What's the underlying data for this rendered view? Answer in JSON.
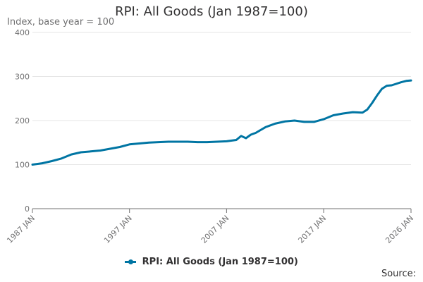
{
  "title": "RPI: All Goods (Jan 1987=100)",
  "source_label": "Source:",
  "colors": {
    "series": "#0075A3",
    "grid": "#e6e6e6",
    "axis": "#707071"
  },
  "chart_data": {
    "type": "line",
    "title": "RPI: All Goods (Jan 1987=100)",
    "ylabel": "Index, base year = 100",
    "xlabel": "",
    "ylim": [
      0,
      400
    ],
    "yticks": [
      0,
      100,
      200,
      300,
      400
    ],
    "xlim": [
      "1987-01",
      "2026-01"
    ],
    "xticks": [
      {
        "value": "1987-01",
        "label": "1987 JAN"
      },
      {
        "value": "1997-01",
        "label": "1997 JAN"
      },
      {
        "value": "2007-01",
        "label": "2007 JAN"
      },
      {
        "value": "2017-01",
        "label": "2017 JAN"
      },
      {
        "value": "2026-01",
        "label": "2026 JAN"
      }
    ],
    "grid": true,
    "legend": "bottom",
    "series": [
      {
        "name": "RPI: All Goods (Jan 1987=100)",
        "x": [
          "1987-01",
          "1988-01",
          "1989-01",
          "1990-01",
          "1991-01",
          "1992-01",
          "1993-01",
          "1994-01",
          "1995-01",
          "1996-01",
          "1997-01",
          "1998-01",
          "1999-01",
          "2000-01",
          "2001-01",
          "2002-01",
          "2003-01",
          "2004-01",
          "2005-01",
          "2006-01",
          "2007-01",
          "2008-01",
          "2008-07",
          "2009-01",
          "2009-07",
          "2010-01",
          "2011-01",
          "2012-01",
          "2013-01",
          "2014-01",
          "2015-01",
          "2016-01",
          "2017-01",
          "2018-01",
          "2019-01",
          "2020-01",
          "2021-01",
          "2021-07",
          "2022-01",
          "2022-07",
          "2023-01",
          "2023-07",
          "2024-01",
          "2025-01",
          "2025-07",
          "2026-01"
        ],
        "values": [
          100,
          103,
          108,
          114,
          123,
          128,
          130,
          132,
          136,
          140,
          146,
          148,
          150,
          151,
          152,
          152,
          152,
          151,
          151,
          152,
          153,
          156,
          165,
          160,
          168,
          172,
          185,
          193,
          198,
          200,
          197,
          197,
          203,
          212,
          216,
          219,
          218,
          225,
          240,
          257,
          272,
          279,
          280,
          287,
          290,
          291
        ]
      }
    ]
  }
}
